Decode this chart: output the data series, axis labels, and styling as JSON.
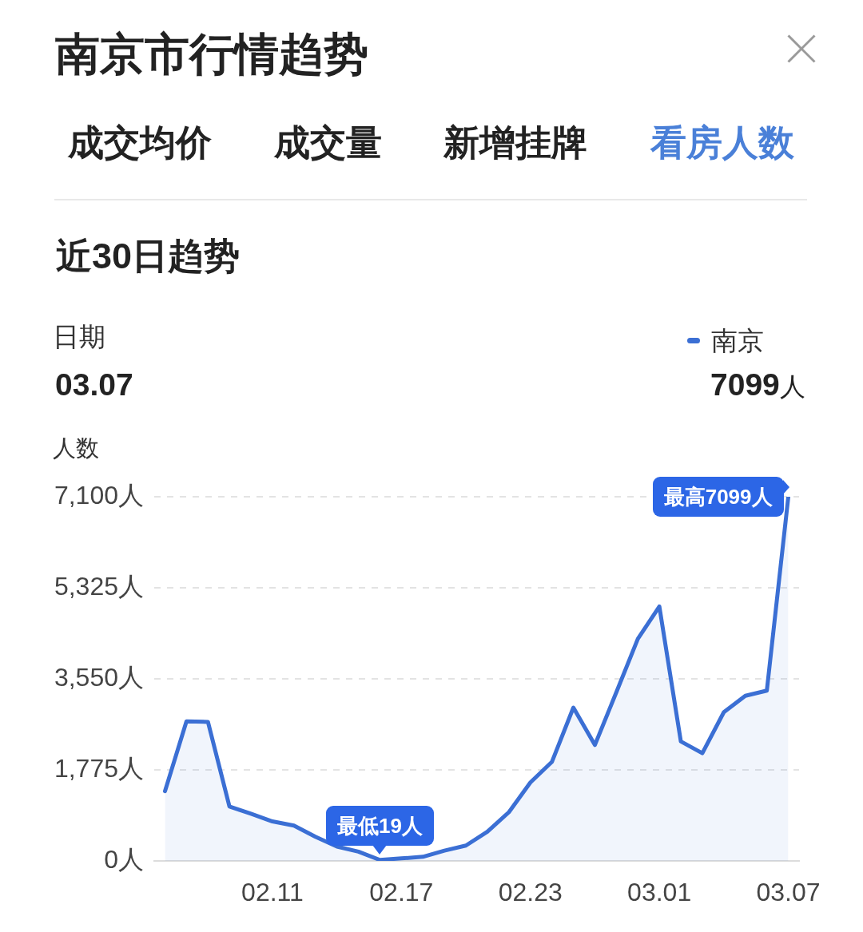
{
  "chart_data": {
    "type": "area",
    "title": "南京市行情趋势",
    "subtitle": "近30日趋势",
    "ylabel": "人数",
    "annotations": [
      "成交均价",
      "成交量",
      "新增挂牌",
      "看房人数",
      "日期",
      "03.07",
      "7099人",
      {
        "text": "最低19人",
        "y": 19
      },
      {
        "text": "最高7099人",
        "x": "03.07",
        "y": 7099
      }
    ],
    "categories": [
      null,
      null,
      null,
      null,
      null,
      "02.11",
      null,
      null,
      null,
      null,
      null,
      "02.17",
      null,
      null,
      null,
      null,
      null,
      "02.23",
      null,
      null,
      null,
      null,
      null,
      "03.01",
      null,
      null,
      null,
      null,
      null,
      "03.07"
    ],
    "series": [
      {
        "name": "南京",
        "color": "#3b6fd4",
        "values": [
          1360,
          2720,
          2710,
          1060,
          920,
          770,
          690,
          470,
          280,
          180,
          19,
          50,
          80,
          200,
          300,
          570,
          950,
          1530,
          1930,
          2990,
          2260,
          3290,
          4330,
          4960,
          2330,
          2100,
          2900,
          3220,
          3320,
          7099
        ]
      }
    ],
    "ylim": [
      0,
      7100
    ],
    "yticks": [
      {
        "value": 0,
        "label": "0人"
      },
      {
        "value": 1775,
        "label": "1,775人"
      },
      {
        "value": 3550,
        "label": "3,550人"
      },
      {
        "value": 5325,
        "label": "5,325人"
      },
      {
        "value": 7100,
        "label": "7,100人"
      }
    ],
    "grid": "y",
    "legend": "top right"
  }
}
